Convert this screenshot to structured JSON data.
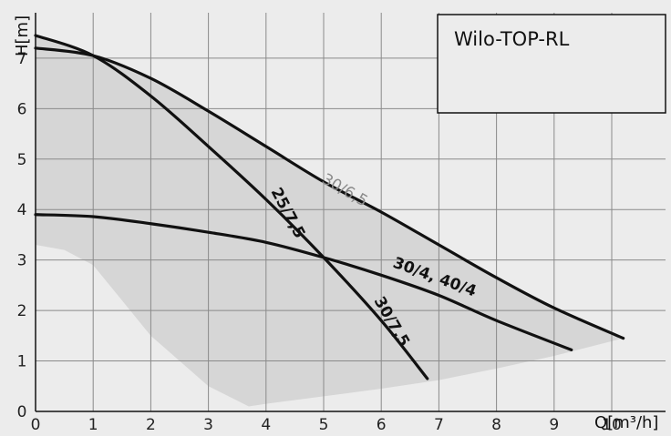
{
  "chart_data": {
    "type": "line",
    "title": "Wilo-TOP-RL",
    "xlabel": "Q[m³/h]",
    "ylabel": "H[m]",
    "xlim": [
      0,
      10.8
    ],
    "ylim": [
      0,
      7.9
    ],
    "x_ticks": [
      "0",
      "1",
      "2",
      "3",
      "4",
      "5",
      "6",
      "7",
      "8",
      "9",
      "10"
    ],
    "y_ticks": [
      "0",
      "1",
      "2",
      "3",
      "4",
      "5",
      "6",
      "7"
    ],
    "grid": true,
    "background_color": "#ececec",
    "grid_color": "#8a8a8a",
    "curve_color": "#111111",
    "envelope_color": "#d6d6d6",
    "series": [
      {
        "name": "30/6,5",
        "x": [
          0,
          1,
          2,
          3,
          4,
          5,
          6,
          7,
          8,
          9,
          10.2
        ],
        "y": [
          7.2,
          7.05,
          6.6,
          5.95,
          5.25,
          4.55,
          3.95,
          3.3,
          2.65,
          2.05,
          1.45
        ]
      },
      {
        "name": "25/7,5",
        "x": [
          0,
          1,
          2,
          3,
          4,
          5,
          6,
          6.8
        ],
        "y": [
          7.45,
          7.05,
          6.25,
          5.25,
          4.2,
          3.05,
          1.8,
          0.65
        ]
      },
      {
        "name": "30/4, 40/4",
        "x": [
          0,
          1,
          2,
          3,
          4,
          5,
          6,
          7,
          8,
          9.3
        ],
        "y": [
          3.9,
          3.86,
          3.72,
          3.55,
          3.35,
          3.05,
          2.7,
          2.3,
          1.8,
          1.22
        ]
      }
    ],
    "envelope": {
      "upper_x": [
        0,
        1,
        2,
        3,
        4,
        5,
        6,
        7,
        8,
        9,
        10.2
      ],
      "upper_y": [
        7.45,
        7.05,
        6.6,
        5.95,
        5.25,
        4.55,
        3.95,
        3.3,
        2.65,
        2.05,
        1.45
      ],
      "lower_x": [
        10.2,
        9,
        8,
        7,
        6,
        5,
        4,
        3.7,
        3,
        2,
        1,
        0.5,
        0
      ],
      "lower_y": [
        1.45,
        1.1,
        0.85,
        0.62,
        0.45,
        0.3,
        0.15,
        0.1,
        0.5,
        1.5,
        2.9,
        3.2,
        3.3
      ]
    },
    "curve_labels": [
      "30/6,5",
      "25/7,5",
      "30/4, 40/4",
      "30/7,5"
    ]
  }
}
